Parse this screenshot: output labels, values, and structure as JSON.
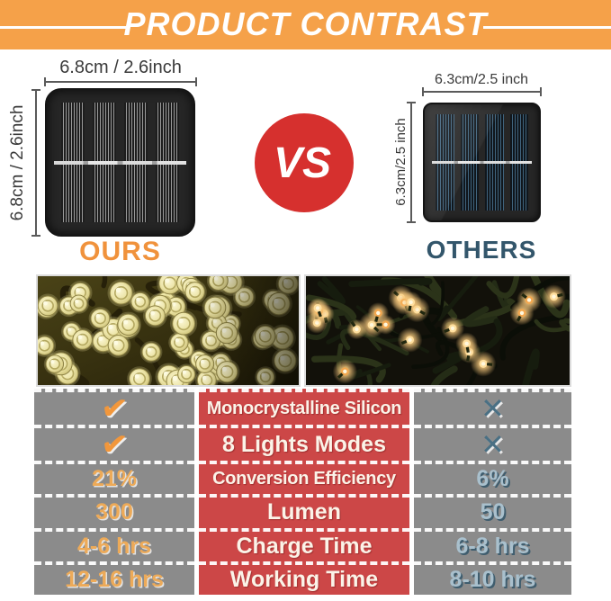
{
  "header": {
    "title": "PRODUCT CONTRAST"
  },
  "comparison": {
    "vs_label": "VS",
    "ours": {
      "label": "OURS",
      "width_label": "6.8cm / 2.6inch",
      "height_label": "6.8cm / 2.6inch"
    },
    "others": {
      "label": "OTHERS",
      "width_label": "6.3cm/2.5 inch",
      "height_label": "6.3cm/2.5 inch"
    }
  },
  "icons": {
    "check": "✔",
    "cross": "✕"
  },
  "table": {
    "rows": [
      {
        "ours": "✔",
        "feature": "Monocrystalline Silicon",
        "others": "✕"
      },
      {
        "ours": "✔",
        "feature": "8 Lights Modes",
        "others": "✕"
      },
      {
        "ours": "21%",
        "feature": "Conversion Efficiency",
        "others": "6%"
      },
      {
        "ours": "300",
        "feature": "Lumen",
        "others": "50"
      },
      {
        "ours": "4-6 hrs",
        "feature": "Charge Time",
        "others": "6-8 hrs"
      },
      {
        "ours": "12-16 hrs",
        "feature": "Working Time",
        "others": "8-10 hrs"
      }
    ]
  },
  "colors": {
    "banner_orange": "#F5A149",
    "vs_red": "#D6302E",
    "table_red": "#CC4747",
    "table_gray": "#8B8B8B",
    "ours_accent": "#F0923C",
    "others_accent": "#33566B",
    "value_orange": "#EDAA58",
    "value_blue": "#A9C0CD"
  }
}
